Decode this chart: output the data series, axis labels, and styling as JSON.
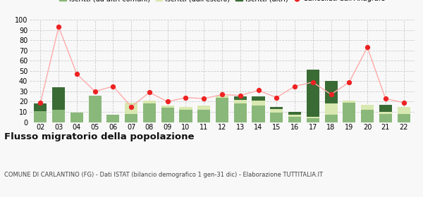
{
  "years": [
    "02",
    "03",
    "04",
    "05",
    "06",
    "07",
    "08",
    "09",
    "10",
    "11",
    "12",
    "13",
    "14",
    "15",
    "16",
    "17",
    "18",
    "19",
    "20",
    "21",
    "22"
  ],
  "iscritti_comuni": [
    11,
    12,
    9,
    26,
    7,
    8,
    18,
    14,
    12,
    12,
    24,
    18,
    16,
    9,
    5,
    4,
    7,
    19,
    12,
    8,
    8
  ],
  "iscritti_estero": [
    0,
    0,
    0,
    0,
    0,
    11,
    3,
    2,
    3,
    4,
    2,
    4,
    5,
    4,
    2,
    1,
    11,
    2,
    5,
    2,
    7
  ],
  "iscritti_altri": [
    7,
    22,
    0,
    0,
    0,
    0,
    0,
    0,
    0,
    0,
    0,
    3,
    4,
    2,
    3,
    46,
    22,
    0,
    0,
    7,
    0
  ],
  "cancellati": [
    19,
    93,
    47,
    30,
    35,
    15,
    29,
    20,
    24,
    23,
    27,
    26,
    31,
    24,
    35,
    39,
    27,
    39,
    73,
    23,
    19
  ],
  "color_comuni": "#8ab87a",
  "color_estero": "#d8e8b0",
  "color_altri": "#3a6b35",
  "color_cancellati": "#ee2222",
  "color_cancellati_line": "#ffaaaa",
  "ylim": [
    0,
    100
  ],
  "yticks": [
    0,
    10,
    20,
    30,
    40,
    50,
    60,
    70,
    80,
    90,
    100
  ],
  "title": "Flusso migratorio della popolazione",
  "subtitle": "COMUNE DI CARLANTINO (FG) - Dati ISTAT (bilancio demografico 1 gen-31 dic) - Elaborazione TUTTITALIA.IT",
  "bg_color": "#f8f8f8",
  "grid_color": "#cccccc"
}
